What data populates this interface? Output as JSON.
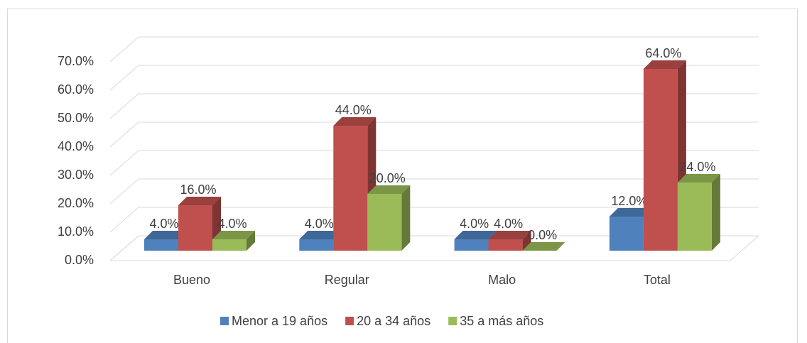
{
  "chart_data": {
    "type": "bar3d",
    "categories": [
      "Bueno",
      "Regular",
      "Malo",
      "Total"
    ],
    "series": [
      {
        "name": "Menor a 19 años",
        "color": "#4f81bd",
        "values": [
          4,
          4,
          4,
          12
        ],
        "value_labels": [
          "4.0%",
          "4.0%",
          "4.0%",
          "12.0%"
        ]
      },
      {
        "name": "20 a 34 años",
        "color": "#c0504d",
        "values": [
          16,
          44,
          4,
          64
        ],
        "value_labels": [
          "16.0%",
          "44.0%",
          "4.0%",
          "64.0%"
        ]
      },
      {
        "name": "35 a más años",
        "color": "#9bbb59",
        "values": [
          4,
          20,
          0,
          24
        ],
        "value_labels": [
          "4.0%",
          "20.0%",
          "0.0%",
          "24.0%"
        ]
      }
    ],
    "ylim": [
      0,
      70
    ],
    "yticks": [
      {
        "value": 0,
        "label": "0.0%"
      },
      {
        "value": 10,
        "label": "10.0%"
      },
      {
        "value": 20,
        "label": "20.0%"
      },
      {
        "value": 30,
        "label": "30.0%"
      },
      {
        "value": 40,
        "label": "40.0%"
      },
      {
        "value": 50,
        "label": "50.0%"
      },
      {
        "value": 60,
        "label": "60.0%"
      },
      {
        "value": 70,
        "label": "70.0%"
      }
    ],
    "grid": true,
    "legend": "bottom"
  }
}
